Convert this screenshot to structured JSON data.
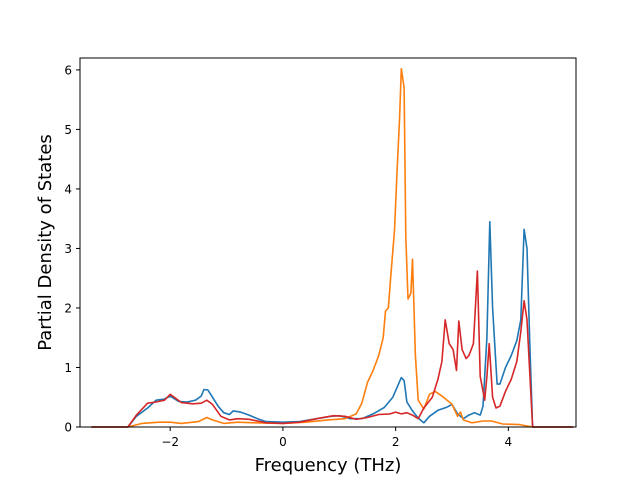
{
  "chart_data": {
    "type": "line",
    "title": "",
    "xlabel": "Frequency (THz)",
    "ylabel": "Partial Density of States",
    "xlim": [
      -3.6,
      5.2
    ],
    "ylim": [
      0,
      6.2
    ],
    "xticks": [
      -2,
      0,
      2,
      4
    ],
    "yticks": [
      0,
      1,
      2,
      3,
      4,
      5,
      6
    ],
    "grid": false,
    "legend": "none",
    "series": [
      {
        "color": "#1f77b4",
        "points": [
          [
            -3.4,
            0.0
          ],
          [
            -2.75,
            0.0
          ],
          [
            -2.6,
            0.18
          ],
          [
            -2.4,
            0.32
          ],
          [
            -2.25,
            0.45
          ],
          [
            -2.1,
            0.47
          ],
          [
            -2.0,
            0.52
          ],
          [
            -1.85,
            0.43
          ],
          [
            -1.7,
            0.42
          ],
          [
            -1.55,
            0.45
          ],
          [
            -1.45,
            0.52
          ],
          [
            -1.4,
            0.63
          ],
          [
            -1.33,
            0.62
          ],
          [
            -1.25,
            0.5
          ],
          [
            -1.15,
            0.35
          ],
          [
            -1.05,
            0.24
          ],
          [
            -0.95,
            0.21
          ],
          [
            -0.88,
            0.27
          ],
          [
            -0.75,
            0.25
          ],
          [
            -0.6,
            0.2
          ],
          [
            -0.45,
            0.14
          ],
          [
            -0.3,
            0.09
          ],
          [
            0.0,
            0.08
          ],
          [
            0.3,
            0.09
          ],
          [
            0.6,
            0.14
          ],
          [
            0.85,
            0.18
          ],
          [
            1.0,
            0.19
          ],
          [
            1.2,
            0.14
          ],
          [
            1.4,
            0.14
          ],
          [
            1.6,
            0.22
          ],
          [
            1.8,
            0.33
          ],
          [
            1.95,
            0.5
          ],
          [
            2.05,
            0.72
          ],
          [
            2.1,
            0.83
          ],
          [
            2.15,
            0.78
          ],
          [
            2.2,
            0.42
          ],
          [
            2.3,
            0.27
          ],
          [
            2.4,
            0.15
          ],
          [
            2.5,
            0.07
          ],
          [
            2.6,
            0.18
          ],
          [
            2.75,
            0.28
          ],
          [
            2.9,
            0.33
          ],
          [
            3.0,
            0.38
          ],
          [
            3.1,
            0.22
          ],
          [
            3.2,
            0.14
          ],
          [
            3.3,
            0.2
          ],
          [
            3.4,
            0.24
          ],
          [
            3.5,
            0.2
          ],
          [
            3.55,
            0.35
          ],
          [
            3.62,
            1.5
          ],
          [
            3.67,
            3.45
          ],
          [
            3.72,
            2.0
          ],
          [
            3.8,
            0.72
          ],
          [
            3.85,
            0.72
          ],
          [
            3.95,
            1.0
          ],
          [
            4.05,
            1.2
          ],
          [
            4.15,
            1.45
          ],
          [
            4.22,
            1.8
          ],
          [
            4.28,
            3.32
          ],
          [
            4.33,
            3.0
          ],
          [
            4.38,
            1.4
          ],
          [
            4.43,
            0.0
          ],
          [
            5.15,
            0.0
          ]
        ]
      },
      {
        "color": "#ff7f0e",
        "points": [
          [
            -3.4,
            0.0
          ],
          [
            -2.75,
            0.0
          ],
          [
            -2.5,
            0.06
          ],
          [
            -2.2,
            0.08
          ],
          [
            -2.0,
            0.08
          ],
          [
            -1.8,
            0.06
          ],
          [
            -1.5,
            0.09
          ],
          [
            -1.35,
            0.16
          ],
          [
            -1.25,
            0.12
          ],
          [
            -1.05,
            0.06
          ],
          [
            -0.8,
            0.08
          ],
          [
            -0.5,
            0.07
          ],
          [
            0.0,
            0.06
          ],
          [
            0.4,
            0.08
          ],
          [
            0.8,
            0.12
          ],
          [
            1.1,
            0.14
          ],
          [
            1.3,
            0.22
          ],
          [
            1.4,
            0.4
          ],
          [
            1.5,
            0.75
          ],
          [
            1.6,
            0.95
          ],
          [
            1.7,
            1.2
          ],
          [
            1.78,
            1.5
          ],
          [
            1.82,
            1.95
          ],
          [
            1.87,
            2.0
          ],
          [
            1.92,
            2.6
          ],
          [
            1.98,
            3.3
          ],
          [
            2.02,
            4.2
          ],
          [
            2.07,
            5.2
          ],
          [
            2.1,
            6.02
          ],
          [
            2.15,
            5.7
          ],
          [
            2.18,
            3.2
          ],
          [
            2.22,
            2.15
          ],
          [
            2.27,
            2.25
          ],
          [
            2.3,
            2.82
          ],
          [
            2.35,
            1.2
          ],
          [
            2.4,
            0.45
          ],
          [
            2.5,
            0.3
          ],
          [
            2.6,
            0.55
          ],
          [
            2.7,
            0.6
          ],
          [
            2.85,
            0.5
          ],
          [
            3.0,
            0.38
          ],
          [
            3.1,
            0.18
          ],
          [
            3.15,
            0.25
          ],
          [
            3.2,
            0.12
          ],
          [
            3.35,
            0.07
          ],
          [
            3.55,
            0.1
          ],
          [
            3.7,
            0.1
          ],
          [
            3.9,
            0.05
          ],
          [
            4.2,
            0.04
          ],
          [
            4.43,
            0.0
          ],
          [
            5.15,
            0.0
          ]
        ]
      },
      {
        "color": "#d62728",
        "points": [
          [
            -3.4,
            0.0
          ],
          [
            -2.75,
            0.0
          ],
          [
            -2.6,
            0.2
          ],
          [
            -2.4,
            0.4
          ],
          [
            -2.25,
            0.42
          ],
          [
            -2.1,
            0.45
          ],
          [
            -2.0,
            0.55
          ],
          [
            -1.8,
            0.41
          ],
          [
            -1.6,
            0.39
          ],
          [
            -1.45,
            0.4
          ],
          [
            -1.35,
            0.45
          ],
          [
            -1.25,
            0.38
          ],
          [
            -1.1,
            0.18
          ],
          [
            -0.95,
            0.12
          ],
          [
            -0.8,
            0.14
          ],
          [
            -0.6,
            0.13
          ],
          [
            -0.3,
            0.07
          ],
          [
            0.0,
            0.06
          ],
          [
            0.3,
            0.08
          ],
          [
            0.6,
            0.14
          ],
          [
            0.9,
            0.19
          ],
          [
            1.1,
            0.18
          ],
          [
            1.3,
            0.13
          ],
          [
            1.5,
            0.16
          ],
          [
            1.7,
            0.21
          ],
          [
            1.9,
            0.22
          ],
          [
            2.0,
            0.25
          ],
          [
            2.1,
            0.22
          ],
          [
            2.2,
            0.24
          ],
          [
            2.3,
            0.2
          ],
          [
            2.4,
            0.14
          ],
          [
            2.5,
            0.32
          ],
          [
            2.65,
            0.5
          ],
          [
            2.75,
            0.8
          ],
          [
            2.82,
            1.1
          ],
          [
            2.88,
            1.8
          ],
          [
            2.95,
            1.4
          ],
          [
            3.02,
            1.3
          ],
          [
            3.08,
            0.95
          ],
          [
            3.12,
            1.78
          ],
          [
            3.18,
            1.3
          ],
          [
            3.25,
            1.15
          ],
          [
            3.3,
            1.2
          ],
          [
            3.38,
            1.4
          ],
          [
            3.45,
            2.62
          ],
          [
            3.5,
            0.85
          ],
          [
            3.58,
            0.45
          ],
          [
            3.62,
            0.85
          ],
          [
            3.66,
            1.4
          ],
          [
            3.72,
            0.5
          ],
          [
            3.78,
            0.32
          ],
          [
            3.85,
            0.35
          ],
          [
            3.95,
            0.6
          ],
          [
            4.05,
            0.8
          ],
          [
            4.15,
            1.1
          ],
          [
            4.22,
            1.6
          ],
          [
            4.28,
            2.12
          ],
          [
            4.33,
            1.8
          ],
          [
            4.38,
            0.9
          ],
          [
            4.43,
            0.0
          ],
          [
            5.15,
            0.0
          ]
        ]
      }
    ]
  }
}
